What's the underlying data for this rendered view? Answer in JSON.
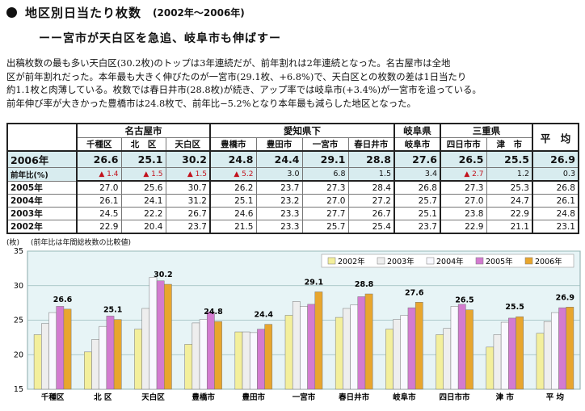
{
  "heading": {
    "title": "地区別日当たり枚数",
    "period": "(2002年〜2006年)"
  },
  "subtitle": "ーー宮市が天白区を急追、岐阜市も伸ばすー",
  "paragraph": [
    "出稿枚数の最も多い天白区(30.2枚)のトップは3年連続だが、前年割れは2年連続となった。名古屋市は全地",
    "区が前年割れだった。本年最も大きく伸びたのが一宮市(29.1枚、+6.8%)で、天白区との枚数の差は1日当たり",
    "約1.1枚と肉薄している。枚数では春日井市(28.8枚)が続き、アップ率では岐阜市(+3.4%)が一宮市を追っている。",
    "前年伸び率が大きかった豊橋市は24.8枚で、前年比−5.2%となり本年最も減らした地区となった。"
  ],
  "table": {
    "groups": {
      "nagoya": "名古屋市",
      "aichi": "愛知県下",
      "gifu": "岐阜県",
      "mie": "三重県",
      "avg": "平　均"
    },
    "columns": [
      "千種区",
      "北　区",
      "天白区",
      "豊橋市",
      "豊田市",
      "一宮市",
      "春日井市",
      "岐阜市",
      "四日市市",
      "津　市"
    ],
    "rows": [
      {
        "label": "2006年",
        "values": [
          "26.6",
          "25.1",
          "30.2",
          "24.8",
          "24.4",
          "29.1",
          "28.8",
          "27.6",
          "26.5",
          "25.5",
          "26.9"
        ]
      },
      {
        "label": "前年比(%)",
        "values": [
          "1.4",
          "1.5",
          "1.5",
          "5.2",
          "3.0",
          "6.8",
          "1.5",
          "3.4",
          "2.7",
          "1.2",
          "0.3"
        ],
        "triangle": [
          true,
          true,
          true,
          true,
          false,
          false,
          false,
          false,
          true,
          false,
          false
        ]
      },
      {
        "label": "2005年",
        "values": [
          "27.0",
          "25.6",
          "30.7",
          "26.2",
          "23.7",
          "27.3",
          "28.4",
          "26.8",
          "27.3",
          "25.3",
          "26.8"
        ]
      },
      {
        "label": "2004年",
        "values": [
          "26.1",
          "24.1",
          "31.2",
          "25.1",
          "23.2",
          "27.0",
          "27.2",
          "25.7",
          "27.0",
          "24.7",
          "26.1"
        ]
      },
      {
        "label": "2003年",
        "values": [
          "24.5",
          "22.2",
          "26.7",
          "24.6",
          "23.3",
          "27.7",
          "26.7",
          "25.1",
          "23.8",
          "22.9",
          "24.8"
        ]
      },
      {
        "label": "2002年",
        "values": [
          "22.9",
          "20.4",
          "23.7",
          "21.5",
          "23.3",
          "25.7",
          "25.4",
          "23.7",
          "22.9",
          "21.1",
          "23.1"
        ]
      }
    ],
    "triangle_glyph": "▲"
  },
  "chart_unit": "(枚)",
  "chart_note": "(前年比は年間総枚数の比較値)",
  "chart_data": {
    "type": "bar",
    "categories": [
      "千種区",
      "北 区",
      "天白区",
      "豊橋市",
      "豊田市",
      "一宮市",
      "春日井市",
      "岐阜市",
      "四日市市",
      "津 市",
      "平 均"
    ],
    "series": [
      {
        "name": "2002年",
        "color": "#f3ef9c",
        "values": [
          22.9,
          20.4,
          23.7,
          21.5,
          23.3,
          25.7,
          25.4,
          23.7,
          22.9,
          21.1,
          23.1
        ]
      },
      {
        "name": "2003年",
        "color": "#eeeeee",
        "values": [
          24.5,
          22.2,
          26.7,
          24.6,
          23.3,
          27.7,
          26.7,
          25.1,
          23.8,
          22.9,
          24.8
        ]
      },
      {
        "name": "2004年",
        "color": "#f9f9ff",
        "values": [
          26.1,
          24.1,
          31.2,
          25.1,
          23.2,
          27.0,
          27.2,
          25.7,
          27.0,
          24.7,
          26.1
        ]
      },
      {
        "name": "2005年",
        "color": "#d37bd0",
        "values": [
          27.0,
          25.6,
          30.7,
          26.2,
          23.7,
          27.3,
          28.4,
          26.8,
          27.3,
          25.3,
          26.8
        ]
      },
      {
        "name": "2006年",
        "color": "#e8a62e",
        "values": [
          26.6,
          25.1,
          30.2,
          24.8,
          24.4,
          29.1,
          28.8,
          27.6,
          26.5,
          25.5,
          26.9
        ]
      }
    ],
    "data_labels": [
      "26.6",
      "25.1",
      "30.2",
      "24.8",
      "24.4",
      "29.1",
      "28.8",
      "27.6",
      "26.5",
      "25.5",
      "26.9"
    ],
    "ylim": [
      15,
      35
    ],
    "yticks": [
      "15",
      "20",
      "25",
      "30",
      "35"
    ],
    "grid": true,
    "legend": "top-right"
  }
}
